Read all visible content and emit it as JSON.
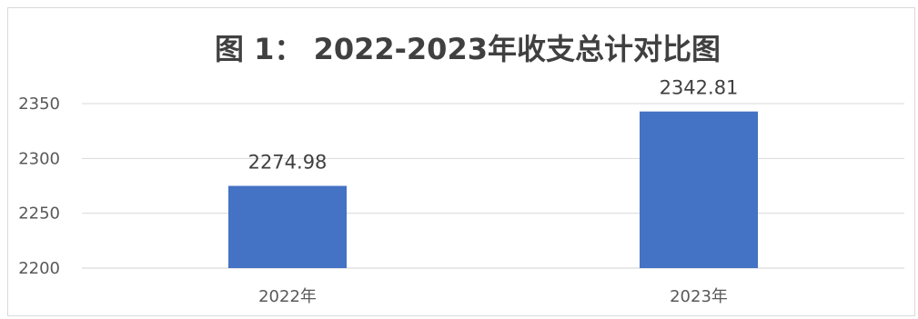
{
  "chart_data": {
    "type": "bar",
    "title": "图 1： 2022-2023年收支总计对比图",
    "categories": [
      "2022年",
      "2023年"
    ],
    "values": [
      2274.98,
      2342.81
    ],
    "data_labels": [
      "2274.98",
      "2342.81"
    ],
    "xlabel": "",
    "ylabel": "",
    "ylim": [
      2200,
      2350
    ],
    "yticks": [
      2200,
      2250,
      2300,
      2350
    ],
    "ytick_labels": [
      "2200",
      "2250",
      "2300",
      "2350"
    ],
    "grid": true,
    "legend": "none",
    "bar_color": "#4472c4",
    "grid_color": "#d9d9d9"
  }
}
